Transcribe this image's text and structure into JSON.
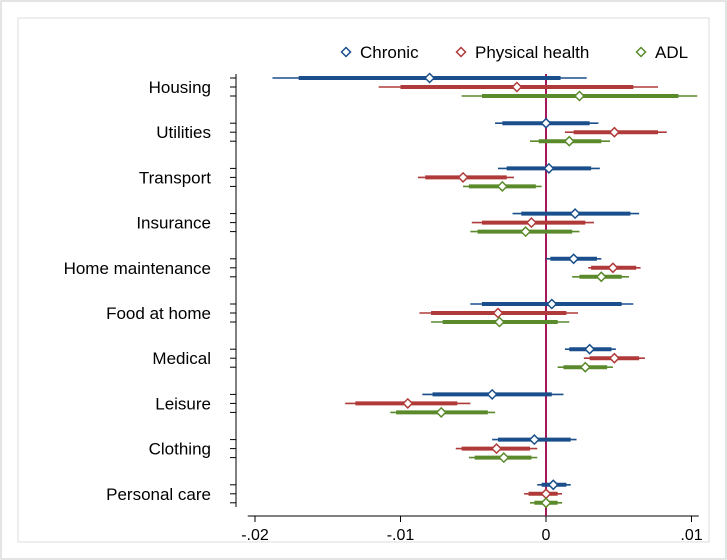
{
  "chart_data": {
    "type": "scatter",
    "subtype": "coefficient-plot",
    "orientation": "horizontal",
    "categories": [
      "Housing",
      "Utilities",
      "Transport",
      "Insurance",
      "Home maintenance",
      "Food at home",
      "Medical",
      "Leisure",
      "Clothing",
      "Personal care"
    ],
    "x_ticks": [
      -0.02,
      -0.01,
      0,
      0.01
    ],
    "x_tick_labels": [
      "-.02",
      "-.01",
      "0",
      ".01"
    ],
    "xlim": [
      -0.0205,
      0.0105
    ],
    "reference_line": {
      "x": 0,
      "color": "#a3195b"
    },
    "legend_position": "top-right",
    "grid": false,
    "series": [
      {
        "name": "Chronic",
        "color": "#1a4f8b",
        "estimates": [
          -0.008,
          0.0,
          0.0002,
          0.002,
          0.0019,
          0.0004,
          0.003,
          -0.0037,
          -0.0008,
          0.0005
        ],
        "ci_inner": [
          [
            -0.017,
            0.001
          ],
          [
            -0.003,
            0.003
          ],
          [
            -0.0027,
            0.0031
          ],
          [
            -0.0017,
            0.0058
          ],
          [
            0.0003,
            0.0035
          ],
          [
            -0.0044,
            0.0052
          ],
          [
            0.0016,
            0.0045
          ],
          [
            -0.0078,
            0.0004
          ],
          [
            -0.0033,
            0.0017
          ],
          [
            -0.0003,
            0.0014
          ]
        ],
        "ci_outer": [
          [
            -0.0188,
            0.0028
          ],
          [
            -0.0035,
            0.0036
          ],
          [
            -0.0033,
            0.0037
          ],
          [
            -0.0023,
            0.0064
          ],
          [
            0.0,
            0.0038
          ],
          [
            -0.0052,
            0.006
          ],
          [
            0.0013,
            0.0048
          ],
          [
            -0.0085,
            0.0012
          ],
          [
            -0.0037,
            0.0021
          ],
          [
            -0.0006,
            0.0017
          ]
        ]
      },
      {
        "name": "Physical health",
        "color": "#b03a3a",
        "estimates": [
          -0.002,
          0.0047,
          -0.0057,
          -0.001,
          0.0046,
          -0.0033,
          0.0047,
          -0.0095,
          -0.0034,
          0.0
        ],
        "ci_inner": [
          [
            -0.01,
            0.006
          ],
          [
            0.0019,
            0.0077
          ],
          [
            -0.0083,
            -0.0027
          ],
          [
            -0.0044,
            0.0027
          ],
          [
            0.0031,
            0.0062
          ],
          [
            -0.0079,
            0.0014
          ],
          [
            0.003,
            0.0064
          ],
          [
            -0.0131,
            -0.0061
          ],
          [
            -0.0058,
            -0.0011
          ],
          [
            -0.0012,
            0.0008
          ]
        ],
        "ci_outer": [
          [
            -0.0115,
            0.0077
          ],
          [
            0.0013,
            0.0083
          ],
          [
            -0.0088,
            -0.0022
          ],
          [
            -0.0051,
            0.0033
          ],
          [
            0.0029,
            0.0065
          ],
          [
            -0.0087,
            0.0022
          ],
          [
            0.0026,
            0.0068
          ],
          [
            -0.0138,
            -0.0052
          ],
          [
            -0.0062,
            -0.0006
          ],
          [
            -0.0015,
            0.0011
          ]
        ]
      },
      {
        "name": "ADL",
        "color": "#5a8a2b",
        "estimates": [
          0.0023,
          0.0016,
          -0.003,
          -0.0014,
          0.0038,
          -0.0032,
          0.0027,
          -0.0072,
          -0.0029,
          0.0
        ],
        "ci_inner": [
          [
            -0.0044,
            0.0091
          ],
          [
            -0.0005,
            0.0038
          ],
          [
            -0.0053,
            -0.0007
          ],
          [
            -0.0047,
            0.0018
          ],
          [
            0.0023,
            0.0052
          ],
          [
            -0.0071,
            0.0008
          ],
          [
            0.0012,
            0.0042
          ],
          [
            -0.0103,
            -0.004
          ],
          [
            -0.0049,
            -0.001
          ],
          [
            -0.0008,
            0.0008
          ]
        ],
        "ci_outer": [
          [
            -0.0058,
            0.0104
          ],
          [
            -0.0011,
            0.0044
          ],
          [
            -0.0057,
            -0.0003
          ],
          [
            -0.0052,
            0.0023
          ],
          [
            0.0018,
            0.0057
          ],
          [
            -0.0079,
            0.0016
          ],
          [
            0.0008,
            0.0046
          ],
          [
            -0.0107,
            -0.0035
          ],
          [
            -0.0053,
            -0.0006
          ],
          [
            -0.0011,
            0.0011
          ]
        ]
      }
    ]
  }
}
